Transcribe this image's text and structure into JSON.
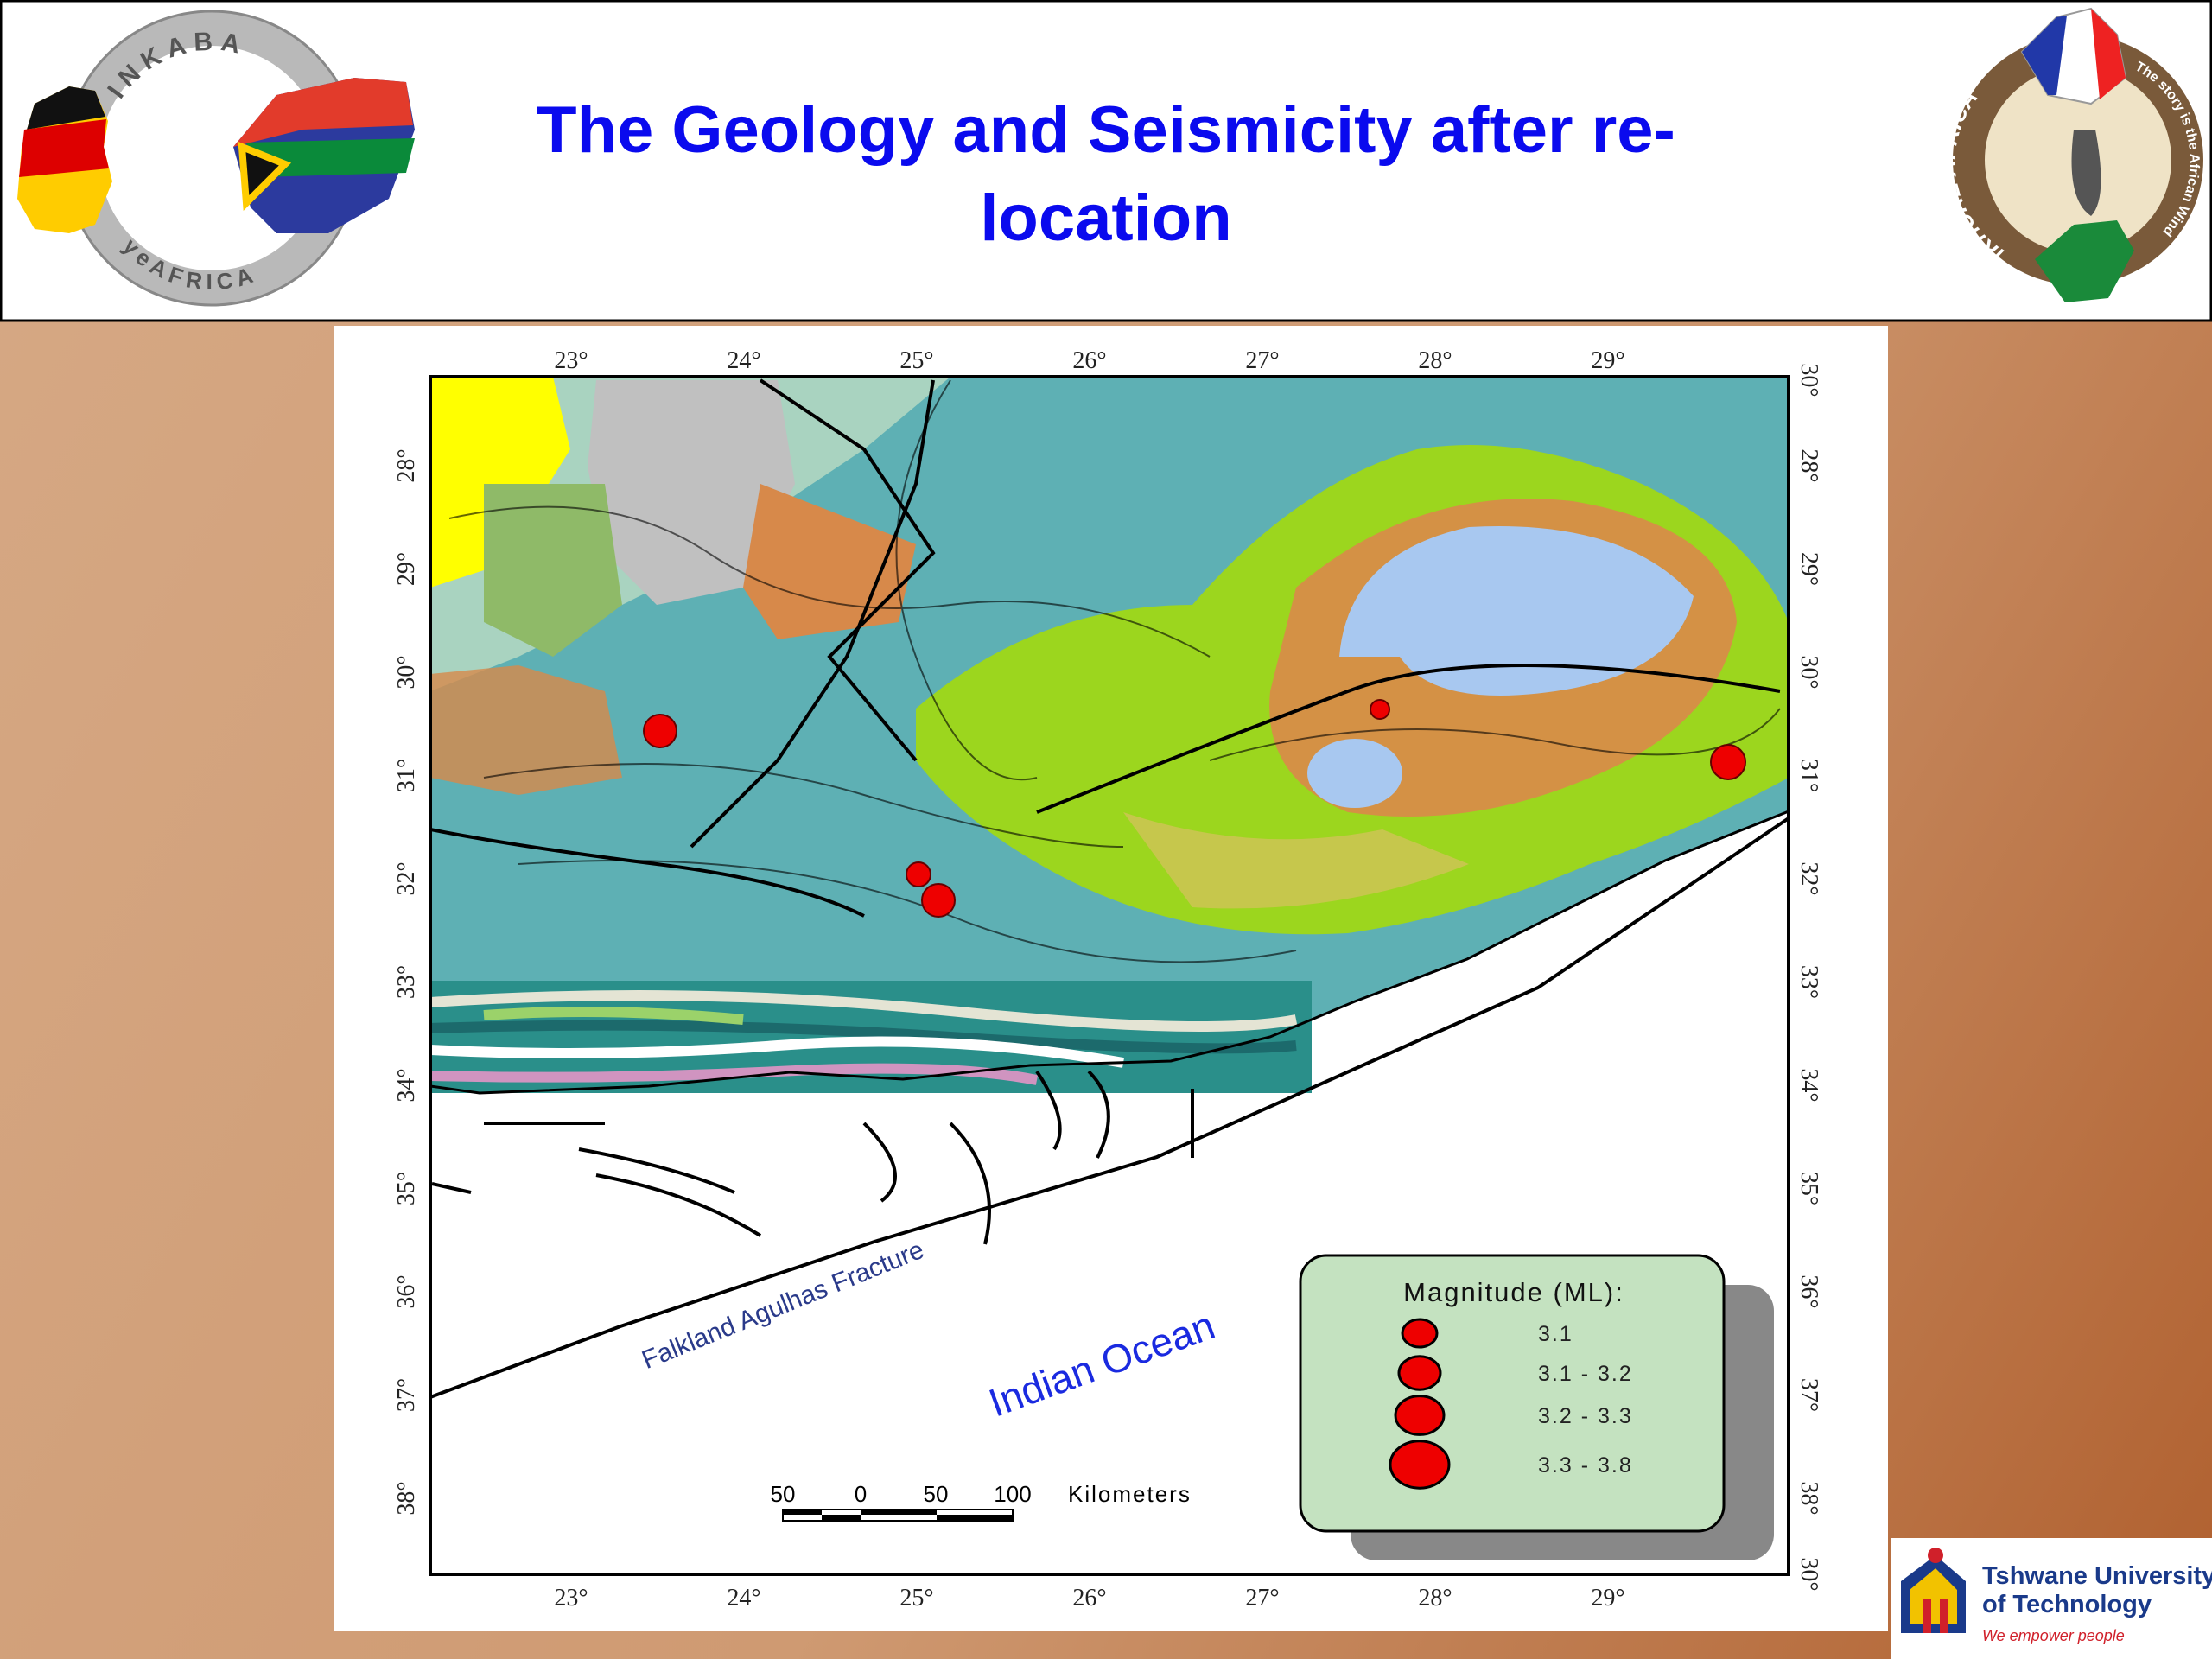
{
  "header": {
    "title": "The Geology and Seismicity after re-location",
    "left_logo": {
      "top_text": "INKABA",
      "bottom_text": "yeAFRICA"
    },
    "right_logo": {
      "left_text": "iKHURE AFRICA",
      "right_text": "The story is the African Wind"
    }
  },
  "map": {
    "top_labels": [
      "23°",
      "24°",
      "25°",
      "26°",
      "27°",
      "28°",
      "29°"
    ],
    "bottom_labels": [
      "23°",
      "24°",
      "25°",
      "26°",
      "27°",
      "28°",
      "29°"
    ],
    "left_labels": [
      "28°",
      "29°",
      "30°",
      "31°",
      "32°",
      "33°",
      "34°",
      "35°",
      "36°",
      "37°",
      "38°"
    ],
    "right_labels": [
      "30°",
      "28°",
      "29°",
      "30°",
      "31°",
      "32°",
      "33°",
      "34°",
      "35°",
      "36°",
      "37°",
      "38°",
      "30°"
    ],
    "fracture_label": "Falkland Agulhas Fracture",
    "ocean_label": "Indian Ocean",
    "scale_bar": {
      "labels": [
        "50",
        "0",
        "50",
        "100"
      ],
      "unit": "Kilometers"
    },
    "legend": {
      "title": "Magnitude (ML):",
      "items": [
        "3.1",
        "3.1 - 3.2",
        "3.2 - 3.3",
        "3.3 - 3.8"
      ]
    }
  },
  "footer_logo": {
    "name_line1": "Tshwane University",
    "name_line2": "of Technology",
    "tagline": "We empower people"
  }
}
